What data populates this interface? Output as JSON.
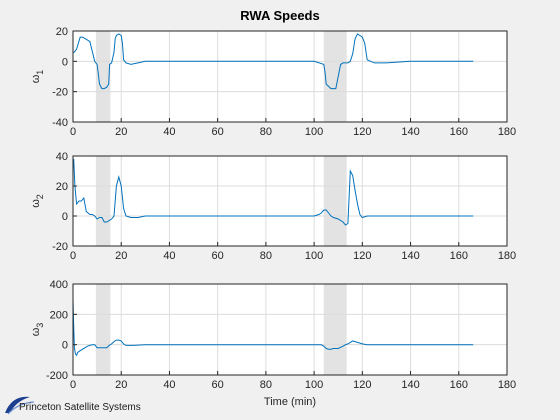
{
  "logo_text": "Princeton Satellite Systems",
  "colors": {
    "series": "#0072bd",
    "shade": "#d9d9d9",
    "background": "#f0f0f0"
  },
  "chart_data": [
    {
      "type": "line",
      "title": "RWA Speeds",
      "ylabel_base": "ω",
      "ylabel_sub": "1",
      "xlabel": "",
      "xlim": [
        0,
        180
      ],
      "ylim": [
        -40,
        20
      ],
      "xticks": [
        0,
        20,
        40,
        60,
        80,
        100,
        120,
        140,
        160,
        180
      ],
      "yticks": [
        -40,
        -20,
        0,
        20
      ],
      "grid": true,
      "shaded_x_intervals": [
        [
          9.5,
          15.5
        ],
        [
          104,
          113.5
        ]
      ],
      "series": [
        {
          "x": [
            0,
            0.5,
            1.5,
            3,
            4,
            5,
            7,
            9,
            10,
            10.5,
            11,
            12,
            13,
            14,
            14.8,
            15.2,
            16,
            17,
            17.5,
            18,
            19,
            20,
            20.5,
            21,
            22,
            24,
            27,
            30,
            40,
            60,
            80,
            90,
            100,
            104,
            104.5,
            105,
            107,
            109,
            111,
            112,
            113,
            114,
            115,
            116,
            117,
            118,
            119,
            120,
            121,
            122,
            125,
            130,
            140,
            150,
            160,
            166
          ],
          "y": [
            6,
            6,
            8,
            16,
            16,
            15,
            13,
            0,
            -2,
            -8,
            -15,
            -18,
            -18,
            -17,
            -15,
            -2,
            -1,
            6,
            15,
            17,
            18,
            17,
            12,
            1,
            -1,
            -2,
            -1,
            0,
            0,
            0,
            0,
            0,
            0,
            -2,
            -7,
            -15,
            -18,
            -18,
            -2,
            -1,
            -1,
            -1,
            0,
            5,
            15,
            18,
            17,
            16,
            12,
            1,
            -1,
            -1,
            0,
            0,
            0,
            0
          ]
        }
      ]
    },
    {
      "type": "line",
      "title": "",
      "ylabel_base": "ω",
      "ylabel_sub": "2",
      "xlabel": "",
      "xlim": [
        0,
        180
      ],
      "ylim": [
        -20,
        40
      ],
      "xticks": [
        0,
        20,
        40,
        60,
        80,
        100,
        120,
        140,
        160,
        180
      ],
      "yticks": [
        -20,
        0,
        20,
        40
      ],
      "grid": true,
      "shaded_x_intervals": [
        [
          9.5,
          15.5
        ],
        [
          104,
          113.5
        ]
      ],
      "series": [
        {
          "x": [
            0,
            0.3,
            0.8,
            1.5,
            2.5,
            3.5,
            4.5,
            5.5,
            7,
            8,
            9,
            10,
            11,
            12,
            13,
            14,
            15,
            16,
            17,
            18,
            19,
            20,
            21,
            22,
            24,
            27,
            30,
            40,
            60,
            80,
            90,
            100,
            102,
            103,
            104,
            105,
            106,
            107,
            108,
            110,
            112,
            113,
            114,
            115,
            116,
            117,
            118,
            119,
            120,
            122,
            125,
            130,
            140,
            150,
            160,
            166
          ],
          "y": [
            35,
            38,
            20,
            8,
            10,
            10,
            12,
            3,
            1,
            1,
            0,
            -2,
            -1,
            -1,
            -4,
            -4,
            -3,
            -2,
            0,
            20,
            26,
            20,
            5,
            0,
            -1,
            -1,
            0,
            0,
            0,
            0,
            0,
            0,
            1,
            2,
            4,
            4,
            2,
            0,
            -1,
            -2,
            -4,
            -6,
            -5,
            30,
            27,
            17,
            8,
            1,
            -1,
            0,
            0,
            0,
            0,
            0,
            0,
            0
          ]
        }
      ]
    },
    {
      "type": "line",
      "title": "",
      "ylabel_base": "ω",
      "ylabel_sub": "3",
      "xlabel": "Time (min)",
      "xlim": [
        0,
        180
      ],
      "ylim": [
        -200,
        400
      ],
      "xticks": [
        0,
        20,
        40,
        60,
        80,
        100,
        120,
        140,
        160,
        180
      ],
      "yticks": [
        -200,
        0,
        200,
        400
      ],
      "grid": true,
      "shaded_x_intervals": [
        [
          9.5,
          15.5
        ],
        [
          104,
          113.5
        ]
      ],
      "series": [
        {
          "x": [
            0,
            0.3,
            0.6,
            1,
            1.5,
            2,
            3,
            4,
            5,
            6,
            7,
            8,
            9,
            10,
            12,
            14,
            15,
            16,
            17,
            18,
            19,
            20,
            21,
            22,
            25,
            30,
            40,
            60,
            80,
            90,
            100,
            103,
            104,
            105,
            106,
            107,
            108,
            110,
            112,
            113,
            114,
            115,
            116,
            117,
            118,
            119,
            120,
            122,
            125,
            130,
            140,
            150,
            160,
            166
          ],
          "y": [
            300,
            120,
            -20,
            -60,
            -70,
            -50,
            -40,
            -30,
            -20,
            -10,
            -5,
            0,
            0,
            -20,
            -20,
            -20,
            -5,
            5,
            20,
            30,
            30,
            25,
            5,
            -5,
            -5,
            0,
            0,
            0,
            0,
            0,
            0,
            0,
            -10,
            -25,
            -30,
            -30,
            -25,
            -25,
            -10,
            0,
            5,
            15,
            25,
            20,
            15,
            10,
            5,
            0,
            0,
            0,
            0,
            0,
            0,
            0
          ]
        }
      ]
    }
  ]
}
